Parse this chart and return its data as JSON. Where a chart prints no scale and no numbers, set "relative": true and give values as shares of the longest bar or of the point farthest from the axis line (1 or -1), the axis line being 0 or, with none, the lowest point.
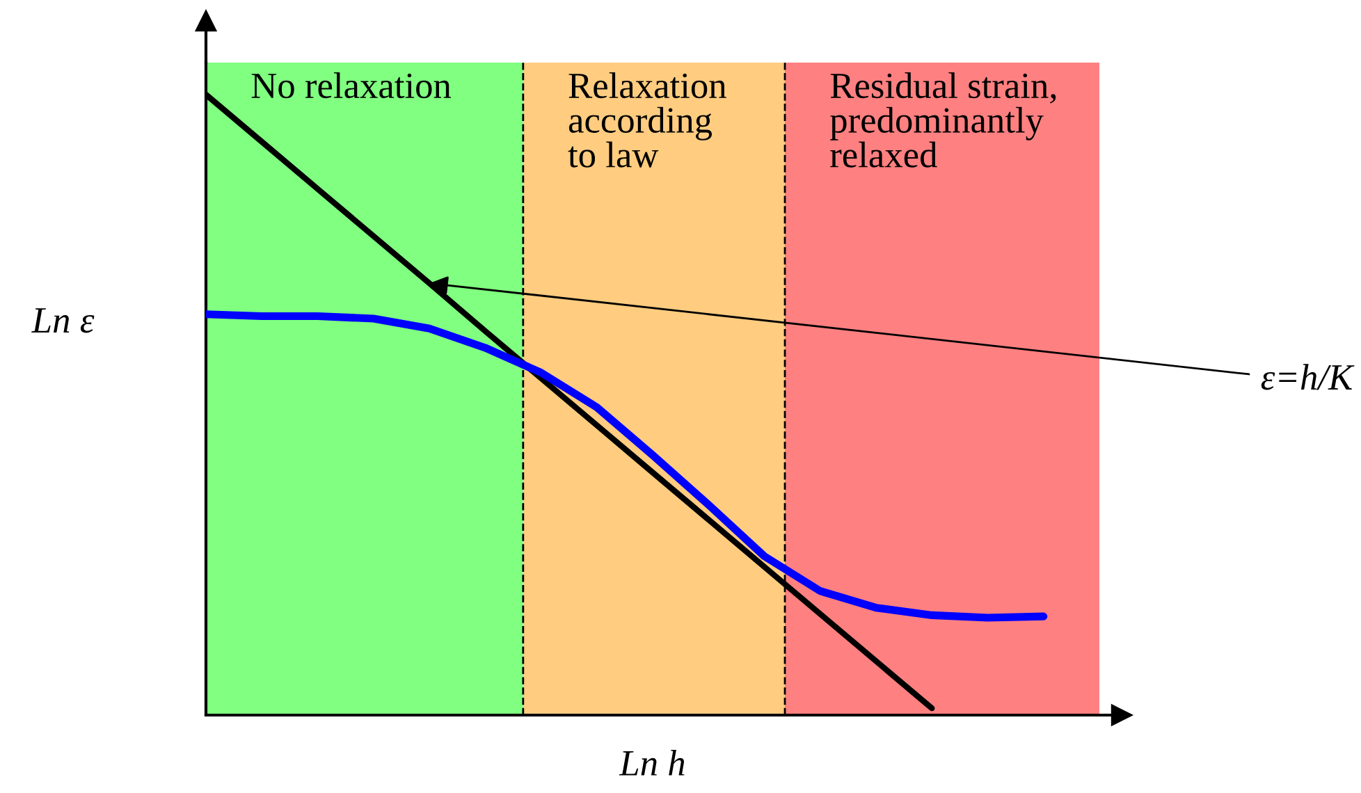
{
  "chart_data": {
    "type": "line",
    "relative": true,
    "tick_labels": false,
    "marker": "none",
    "line_style": "solid",
    "xlabel": "Ln h",
    "ylabel": "Ln ε",
    "categories": [
      null,
      null,
      null,
      null,
      null,
      null,
      null,
      null,
      null,
      null,
      null,
      null,
      null,
      null,
      null,
      null,
      null
    ],
    "series": [
      {
        "color": "#000000",
        "values": [
          1,
          0.924,
          0.848,
          0.772,
          0.696,
          0.619,
          0.543,
          0.467,
          0.391,
          0.315,
          0.239,
          0.163,
          0.087,
          0.011,
          null,
          null,
          null
        ]
      },
      {
        "color": "#0000ff",
        "values": [
          0.646,
          0.643,
          0.643,
          0.639,
          0.623,
          0.592,
          0.552,
          0.496,
          0.419,
          0.339,
          0.256,
          0.2,
          0.173,
          0.161,
          0.157,
          0.159,
          null
        ]
      }
    ],
    "annotations": [
      "No relaxation",
      "Relaxation\naccording\nto law",
      "Residual strain,\npredominantly\nrelaxed",
      "ε=h/K"
    ]
  }
}
